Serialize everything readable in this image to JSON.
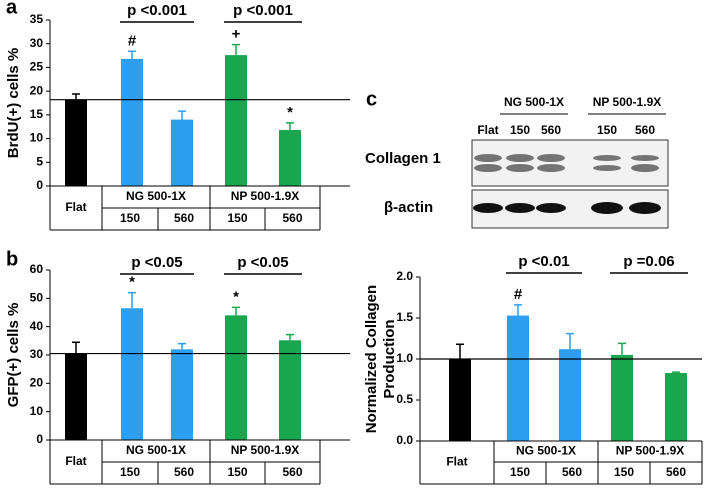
{
  "chart_data": [
    {
      "type": "bar",
      "panel": "a",
      "ylabel": "BrdU(+) cells %",
      "ylim": [
        0,
        35
      ],
      "yticks": [
        0,
        5,
        10,
        15,
        20,
        25,
        30,
        35
      ],
      "categories": [
        "Flat",
        "150",
        "560",
        "150",
        "560"
      ],
      "groups": [
        "NG 500-1X",
        "NP 500-1.9X"
      ],
      "values": [
        18.2,
        26.8,
        14.0,
        27.6,
        11.8
      ],
      "errors": [
        1.2,
        1.6,
        1.8,
        2.2,
        1.5
      ],
      "colors": [
        "#000000",
        "#2d9ef0",
        "#2d9ef0",
        "#1aa64f",
        "#1aa64f"
      ],
      "markers": [
        null,
        "#",
        null,
        "+",
        "*"
      ],
      "comparisons": [
        "p <0.001",
        "p <0.001"
      ]
    },
    {
      "type": "bar",
      "panel": "b",
      "ylabel": "GFP(+) cells %",
      "ylim": [
        0,
        60
      ],
      "yticks": [
        0,
        10,
        20,
        30,
        40,
        50,
        60
      ],
      "categories": [
        "Flat",
        "150",
        "560",
        "150",
        "560"
      ],
      "groups": [
        "NG 500-1X",
        "NP 500-1.9X"
      ],
      "values": [
        30.5,
        46.5,
        32.0,
        44.0,
        35.2
      ],
      "errors": [
        4.0,
        5.5,
        2.0,
        2.8,
        2.0
      ],
      "colors": [
        "#000000",
        "#2d9ef0",
        "#2d9ef0",
        "#1aa64f",
        "#1aa64f"
      ],
      "markers": [
        null,
        "*",
        null,
        "*",
        null
      ],
      "comparisons": [
        "p <0.05",
        "p <0.05"
      ]
    },
    {
      "type": "bar",
      "ylabel": [
        "Normalized Collagen",
        "Production"
      ],
      "ylim": [
        0,
        2
      ],
      "yticks": [
        {
          "value": 0,
          "label": "0.0"
        },
        0.5,
        {
          "value": 1,
          "label": "1.0"
        },
        1.5,
        {
          "value": 2,
          "label": "2.0"
        }
      ],
      "categories": [
        "Flat",
        "150",
        "560",
        "150",
        "560"
      ],
      "groups": [
        "NG 500-1X",
        "NP 500-1.9X"
      ],
      "values": [
        1.0,
        1.53,
        1.12,
        1.05,
        0.83
      ],
      "errors": [
        0.18,
        0.13,
        0.19,
        0.14,
        0.01
      ],
      "colors": [
        "#000000",
        "#2d9ef0",
        "#2d9ef0",
        "#1aa64f",
        "#1aa64f"
      ],
      "markers": [
        null,
        "#",
        null,
        null,
        null
      ],
      "comparisons": [
        "p <0.01",
        "p =0.06"
      ]
    }
  ],
  "blot": {
    "panel": "c",
    "groups": [
      "NG 500-1X",
      "NP 500-1.9X"
    ],
    "lanes": [
      "Flat",
      "150",
      "560",
      "150",
      "560"
    ],
    "rows": [
      "Collagen 1",
      "β-actin"
    ]
  }
}
